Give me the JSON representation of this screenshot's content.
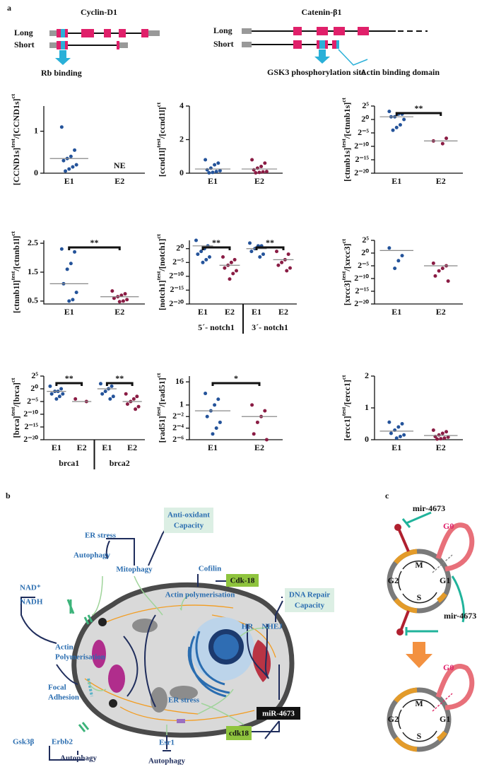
{
  "panel_a": {
    "label": "a",
    "genes": [
      {
        "name": "Cyclin-D1",
        "long": "Long",
        "short": "Short",
        "site": "Rb binding"
      },
      {
        "name": "Catenin-β1",
        "long": "Long",
        "short": "Short",
        "site": "GSK3 phosphorylation site",
        "domain": "Actin binding domain"
      }
    ]
  },
  "chart_data": [
    {
      "type": "dot",
      "ylabel": [
        "[CCND1s]",
        "test",
        "/[CCND1s]",
        "ct"
      ],
      "ylim": [
        0,
        1.6
      ],
      "yticks": [
        0,
        1
      ],
      "series": [
        {
          "name": "E1",
          "color": "#24539a",
          "values": [
            1.1,
            0.55,
            0.4,
            0.35,
            0.3,
            0.2,
            0.15,
            0.1,
            0.05
          ],
          "mean": 0.35
        },
        {
          "name": "E2",
          "color": "#8a1c44",
          "values": [],
          "mean": null
        }
      ],
      "annotations": [
        "NE"
      ]
    },
    {
      "type": "dot",
      "ylabel": [
        "[ccnd1l]",
        "test",
        "/[ccnd1l]",
        "ct"
      ],
      "ylim": [
        0,
        4
      ],
      "yticks": [
        0,
        2,
        4
      ],
      "series": [
        {
          "name": "E1",
          "color": "#24539a",
          "values": [
            0.8,
            0.6,
            0.5,
            0.3,
            0.2,
            0.15,
            0.1,
            0.05,
            0.02
          ],
          "mean": 0.25
        },
        {
          "name": "E2",
          "color": "#8a1c44",
          "values": [
            0.8,
            0.6,
            0.4,
            0.3,
            0.2,
            0.1,
            0.08,
            0.05,
            0.02
          ],
          "mean": 0.25
        }
      ]
    },
    {
      "type": "dot",
      "log": true,
      "ylabel": [
        "[ctnnb1s]",
        "test",
        "/[ctnnb1s]",
        "ct"
      ],
      "ylim": [
        9.5367431640625e-07,
        32
      ],
      "yticks": [
        {
          "value": 32,
          "label": "2⁵"
        },
        {
          "value": 1,
          "label": "2⁰"
        },
        {
          "value": 0.03125,
          "label": "2⁻⁵"
        },
        {
          "value": 0.0009765625,
          "label": "2⁻¹⁰"
        },
        {
          "value": 3.0517578125e-05,
          "label": "2⁻¹⁵"
        },
        {
          "value": 9.5367431640625e-07,
          "label": "2⁻²⁰"
        }
      ],
      "series": [
        {
          "name": "E1",
          "color": "#24539a",
          "values": [
            8,
            4,
            4,
            2,
            2,
            1,
            0.25,
            0.125,
            0.0625
          ],
          "mean": 2
        },
        {
          "name": "E2",
          "color": "#8a1c44",
          "values": [
            0.00390625,
            0.0078125,
            0.001953125
          ],
          "mean": 0.00390625
        }
      ],
      "significance": [
        "**"
      ]
    },
    {
      "type": "dot",
      "ylabel": [
        "[ctnnb1l]",
        "test",
        "/[ctnnb1l]",
        "ct"
      ],
      "ylim": [
        0.4,
        2.6
      ],
      "yticks": [
        0.5,
        1.5,
        2.5
      ],
      "series": [
        {
          "name": "E1",
          "color": "#24539a",
          "values": [
            2.3,
            2.2,
            1.8,
            1.6,
            1.1,
            0.8,
            0.55,
            0.5
          ],
          "mean": 1.1
        },
        {
          "name": "E2",
          "color": "#8a1c44",
          "values": [
            0.85,
            0.75,
            0.7,
            0.65,
            0.6,
            0.55,
            0.5,
            0.48
          ],
          "mean": 0.65
        }
      ],
      "significance": [
        "**"
      ]
    },
    {
      "type": "dot",
      "log": true,
      "ylabel": [
        "[notch1]",
        "test",
        "/[notch1]",
        "ct"
      ],
      "ylim": [
        9.5367431640625e-07,
        8
      ],
      "yticks": [
        {
          "value": 1,
          "label": "2⁰"
        },
        {
          "value": 0.03125,
          "label": "2⁻⁵"
        },
        {
          "value": 0.0009765625,
          "label": "2⁻¹⁰"
        },
        {
          "value": 3.0517578125e-05,
          "label": "2⁻¹⁵"
        },
        {
          "value": 9.5367431640625e-07,
          "label": "2⁻²⁰"
        }
      ],
      "series": [
        {
          "name": "E1",
          "color": "#24539a",
          "values": [
            8,
            2,
            1,
            0.5,
            0.25,
            0.125,
            0.0625,
            0.03125
          ],
          "mean": 2
        },
        {
          "name": "E2",
          "color": "#8a1c44",
          "values": [
            0.125,
            0.0625,
            0.03125,
            0.015625,
            0.0078125,
            0.00390625,
            0.001953125,
            0.00048828125
          ],
          "mean": 0.015625
        },
        {
          "name": "E1",
          "color": "#24539a",
          "values": [
            4,
            2,
            2,
            1,
            0.5,
            0.25,
            0.125
          ],
          "mean": 1
        },
        {
          "name": "E2",
          "color": "#8a1c44",
          "values": [
            0.5,
            0.25,
            0.0625,
            0.03125,
            0.015625,
            0.0078125,
            0.00390625
          ],
          "mean": 0.0625
        }
      ],
      "significance": [
        "**",
        "**"
      ],
      "subgroups": [
        "5´- notch1",
        "3´- notch1"
      ]
    },
    {
      "type": "dot",
      "log": true,
      "ylabel": [
        "[xrcc3]",
        "test",
        "/[xrcc3]",
        "ct"
      ],
      "ylim": [
        9.5367431640625e-07,
        32
      ],
      "yticks": [
        {
          "value": 32,
          "label": "2⁵"
        },
        {
          "value": 1,
          "label": "2⁰"
        },
        {
          "value": 0.03125,
          "label": "2⁻⁵"
        },
        {
          "value": 0.0009765625,
          "label": "2⁻¹⁰"
        },
        {
          "value": 3.0517578125e-05,
          "label": "2⁻¹⁵"
        },
        {
          "value": 9.5367431640625e-07,
          "label": "2⁻²⁰"
        }
      ],
      "series": [
        {
          "name": "E1",
          "color": "#24539a",
          "values": [
            4,
            0.5,
            0.125,
            0.015625
          ],
          "mean": 2
        },
        {
          "name": "E2",
          "color": "#8a1c44",
          "values": [
            0.0625,
            0.03125,
            0.015625,
            0.0078125,
            0.001953125,
            0.00048828125
          ],
          "mean": 0.03125
        }
      ]
    },
    {
      "type": "dot",
      "log": true,
      "ylabel": [
        "[brca]",
        "test",
        "/[brca]",
        "ct"
      ],
      "ylim": [
        9.5367431640625e-07,
        32
      ],
      "yticks": [
        {
          "value": 32,
          "label": "2⁵"
        },
        {
          "value": 1,
          "label": "2⁰"
        },
        {
          "value": 0.03125,
          "label": "2⁻⁵"
        },
        {
          "value": 0.0009765625,
          "label": "2⁻¹⁰"
        },
        {
          "value": 3.0517578125e-05,
          "label": "2⁻¹⁵"
        },
        {
          "value": 9.5367431640625e-07,
          "label": "2⁻²⁰"
        }
      ],
      "series": [
        {
          "name": "E1",
          "color": "#24539a",
          "values": [
            2,
            1,
            0.5,
            0.5,
            0.25,
            0.25,
            0.125,
            0.0625
          ],
          "mean": 0.5
        },
        {
          "name": "E2",
          "color": "#8a1c44",
          "values": [
            0.0625,
            0.03125
          ],
          "mean": 0.03125
        },
        {
          "name": "E1",
          "color": "#24539a",
          "values": [
            4,
            2,
            1,
            0.5,
            0.25,
            0.125,
            0.0625
          ],
          "mean": 1
        },
        {
          "name": "E2",
          "color": "#8a1c44",
          "values": [
            0.25,
            0.125,
            0.0625,
            0.03125,
            0.015625,
            0.0078125,
            0.00390625
          ],
          "mean": 0.03125
        }
      ],
      "significance": [
        "**",
        "**"
      ],
      "subgroups": [
        "brca1",
        "brca2"
      ]
    },
    {
      "type": "dot",
      "log": true,
      "ylabel": [
        "[rad51]",
        "test",
        "/[rad51]",
        "ct"
      ],
      "ylim": [
        0.015625,
        32
      ],
      "yticks": [
        16,
        1,
        {
          "value": 0.25,
          "label": "2⁻²"
        },
        {
          "value": 0.0625,
          "label": "2⁻⁴"
        },
        {
          "value": 0.015625,
          "label": "2⁻⁶"
        }
      ],
      "series": [
        {
          "name": "E1",
          "color": "#24539a",
          "values": [
            4,
            2,
            1,
            0.5,
            0.25,
            0.125,
            0.0625,
            0.03125
          ],
          "mean": 0.5
        },
        {
          "name": "E2",
          "color": "#8a1c44",
          "values": [
            1,
            0.5,
            0.25,
            0.125,
            0.03125,
            0.015625
          ],
          "mean": 0.25
        }
      ],
      "significance": [
        "*"
      ]
    },
    {
      "type": "dot",
      "ylabel": [
        "[ercc1]",
        "test",
        "/[ercc1]",
        "ct"
      ],
      "ylim": [
        0,
        2
      ],
      "yticks": [
        0,
        1,
        2
      ],
      "series": [
        {
          "name": "E1",
          "color": "#24539a",
          "values": [
            0.55,
            0.5,
            0.4,
            0.3,
            0.2,
            0.15,
            0.1,
            0.05
          ],
          "mean": 0.27
        },
        {
          "name": "E2",
          "color": "#8a1c44",
          "values": [
            0.3,
            0.25,
            0.2,
            0.15,
            0.1,
            0.08,
            0.05,
            0.03,
            0.02
          ],
          "mean": 0.13
        }
      ]
    }
  ],
  "panel_b": {
    "label": "b",
    "labels": [
      "ER stress",
      "Autophagy",
      "Mitophagy",
      [
        "Anti-oxidant",
        "Capacity"
      ],
      "Cofilin",
      "Cdk-18",
      "Actin polymerisation",
      "NAD⁺",
      "NADH",
      [
        "Actin",
        "Polymerisation"
      ],
      [
        "Focal",
        "Adhesion"
      ],
      "HR",
      "NHEJ",
      [
        "DNA Repair",
        "Capacity"
      ],
      "ER stress",
      "miR-4673",
      "cdk18",
      "Gsk3β",
      "Erbb2",
      "Autophagy",
      "Esr1",
      "Autophagy"
    ]
  },
  "panel_c": {
    "label": "c",
    "top": {
      "mir": "mir-4673",
      "g0": "G0",
      "phases": [
        "M",
        "G1",
        "S",
        "G2"
      ],
      "mir2": "mir-4673"
    },
    "bottom": {
      "g0": "G0",
      "phases": [
        "M",
        "G1",
        "S",
        "G2"
      ]
    }
  }
}
